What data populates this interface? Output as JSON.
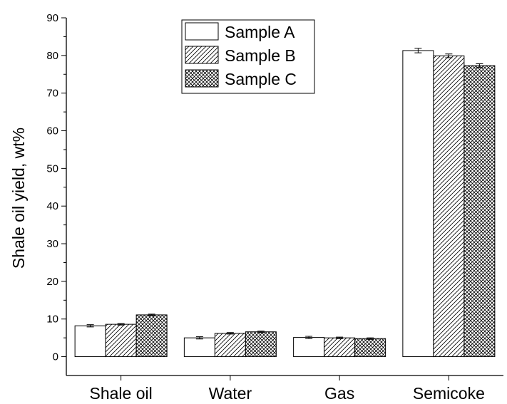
{
  "chart_data": {
    "type": "bar",
    "title": "",
    "xlabel": "",
    "ylabel": "Shale oil yield, wt%",
    "ylim": [
      -5,
      90
    ],
    "yticks": [
      0,
      10,
      20,
      30,
      40,
      50,
      60,
      70,
      80,
      90
    ],
    "categories": [
      "Shale oil",
      "Water",
      "Gas",
      "Semicoke"
    ],
    "series": [
      {
        "name": "Sample A",
        "pattern": "none",
        "values": [
          8.2,
          5.0,
          5.1,
          81.3
        ],
        "errors": [
          0.3,
          0.3,
          0.3,
          0.6
        ]
      },
      {
        "name": "Sample B",
        "pattern": "diagonal-hatch",
        "values": [
          8.6,
          6.2,
          5.0,
          79.9
        ],
        "errors": [
          0.2,
          0.2,
          0.2,
          0.5
        ]
      },
      {
        "name": "Sample C",
        "pattern": "cross-hatch",
        "values": [
          11.1,
          6.6,
          4.8,
          77.3
        ],
        "errors": [
          0.2,
          0.2,
          0.2,
          0.5
        ]
      }
    ],
    "grid": false,
    "legend_position": "top-center",
    "colors": {
      "bar_fill": "#ffffff",
      "stroke": "#000000"
    }
  }
}
